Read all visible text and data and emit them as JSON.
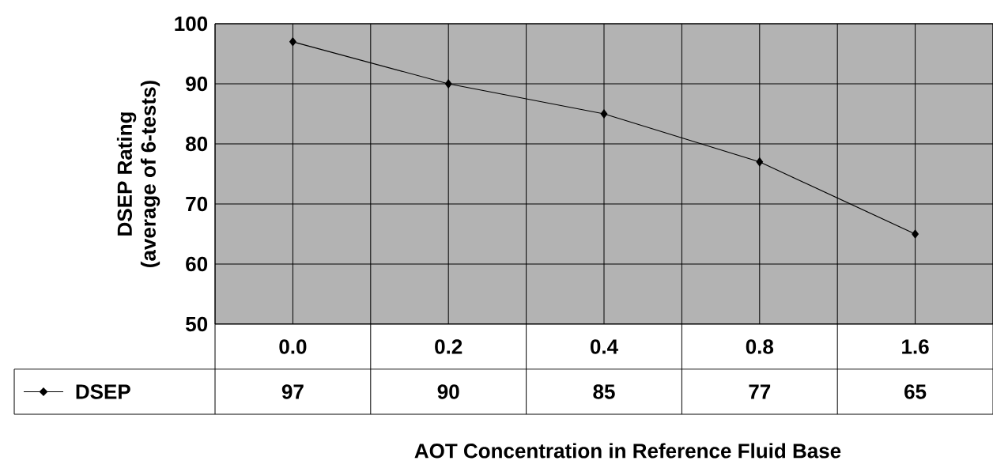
{
  "chart_data": {
    "type": "line",
    "xlabel": "AOT Concentration in Reference Fluid Base",
    "ylabel": "DSEP Rating\n(average of 6-tests)",
    "categories": [
      "0.0",
      "0.2",
      "0.4",
      "0.8",
      "1.6"
    ],
    "series": [
      {
        "name": "DSEP",
        "color": "#000000",
        "values": [
          97,
          90,
          85,
          77,
          65
        ]
      }
    ],
    "ylim": [
      50,
      100
    ],
    "yticks": [
      50,
      60,
      70,
      80,
      90,
      100
    ],
    "grid": true,
    "legend": "bottom",
    "marker": "diamond",
    "line_style": "solid",
    "data_labels": true
  }
}
